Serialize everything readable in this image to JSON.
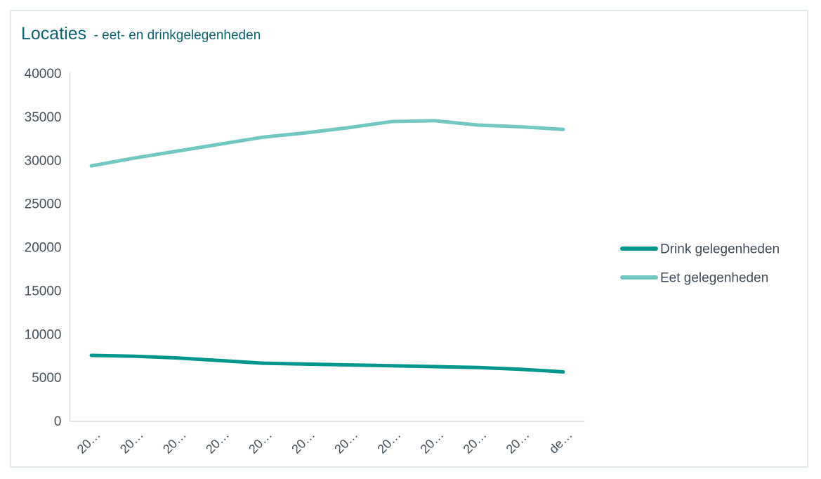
{
  "window": {
    "background": "#ffffff",
    "frame_border_color": "#e3e8ed"
  },
  "header": {
    "title": "Locaties",
    "subtitle": "- eet- en drinkgelegenheden",
    "title_color": "#0f6270"
  },
  "chart_data": {
    "type": "line",
    "title": "Locaties - eet- en drinkgelegenheden",
    "categories": [
      "20…",
      "20…",
      "20…",
      "20…",
      "20…",
      "20…",
      "20…",
      "20…",
      "20…",
      "20…",
      "20…",
      "de…"
    ],
    "series": [
      {
        "name": "Drink gelegenheden",
        "color": "#00968b",
        "values": [
          7600,
          7500,
          7300,
          7000,
          6700,
          6600,
          6500,
          6400,
          6300,
          6200,
          6000,
          5700
        ]
      },
      {
        "name": "Eet gelegenheden",
        "color": "#72c8c0",
        "values": [
          29400,
          30300,
          31100,
          31900,
          32700,
          33200,
          33800,
          34500,
          34600,
          34100,
          33900,
          33600
        ]
      }
    ],
    "xlabel": "",
    "ylabel": "",
    "ylim": [
      0,
      40000
    ],
    "y_tick_step": 5000,
    "y_tick_labels": [
      "0",
      "5000",
      "10000",
      "15000",
      "20000",
      "25000",
      "30000",
      "35000",
      "40000"
    ],
    "grid": "off",
    "legend_position": "right",
    "legend_order": [
      "Drink gelegenheden",
      "Eet gelegenheden"
    ],
    "axis_text_color": "#44505c",
    "axis_line_color": "#dde3e8",
    "line_width": 5
  }
}
